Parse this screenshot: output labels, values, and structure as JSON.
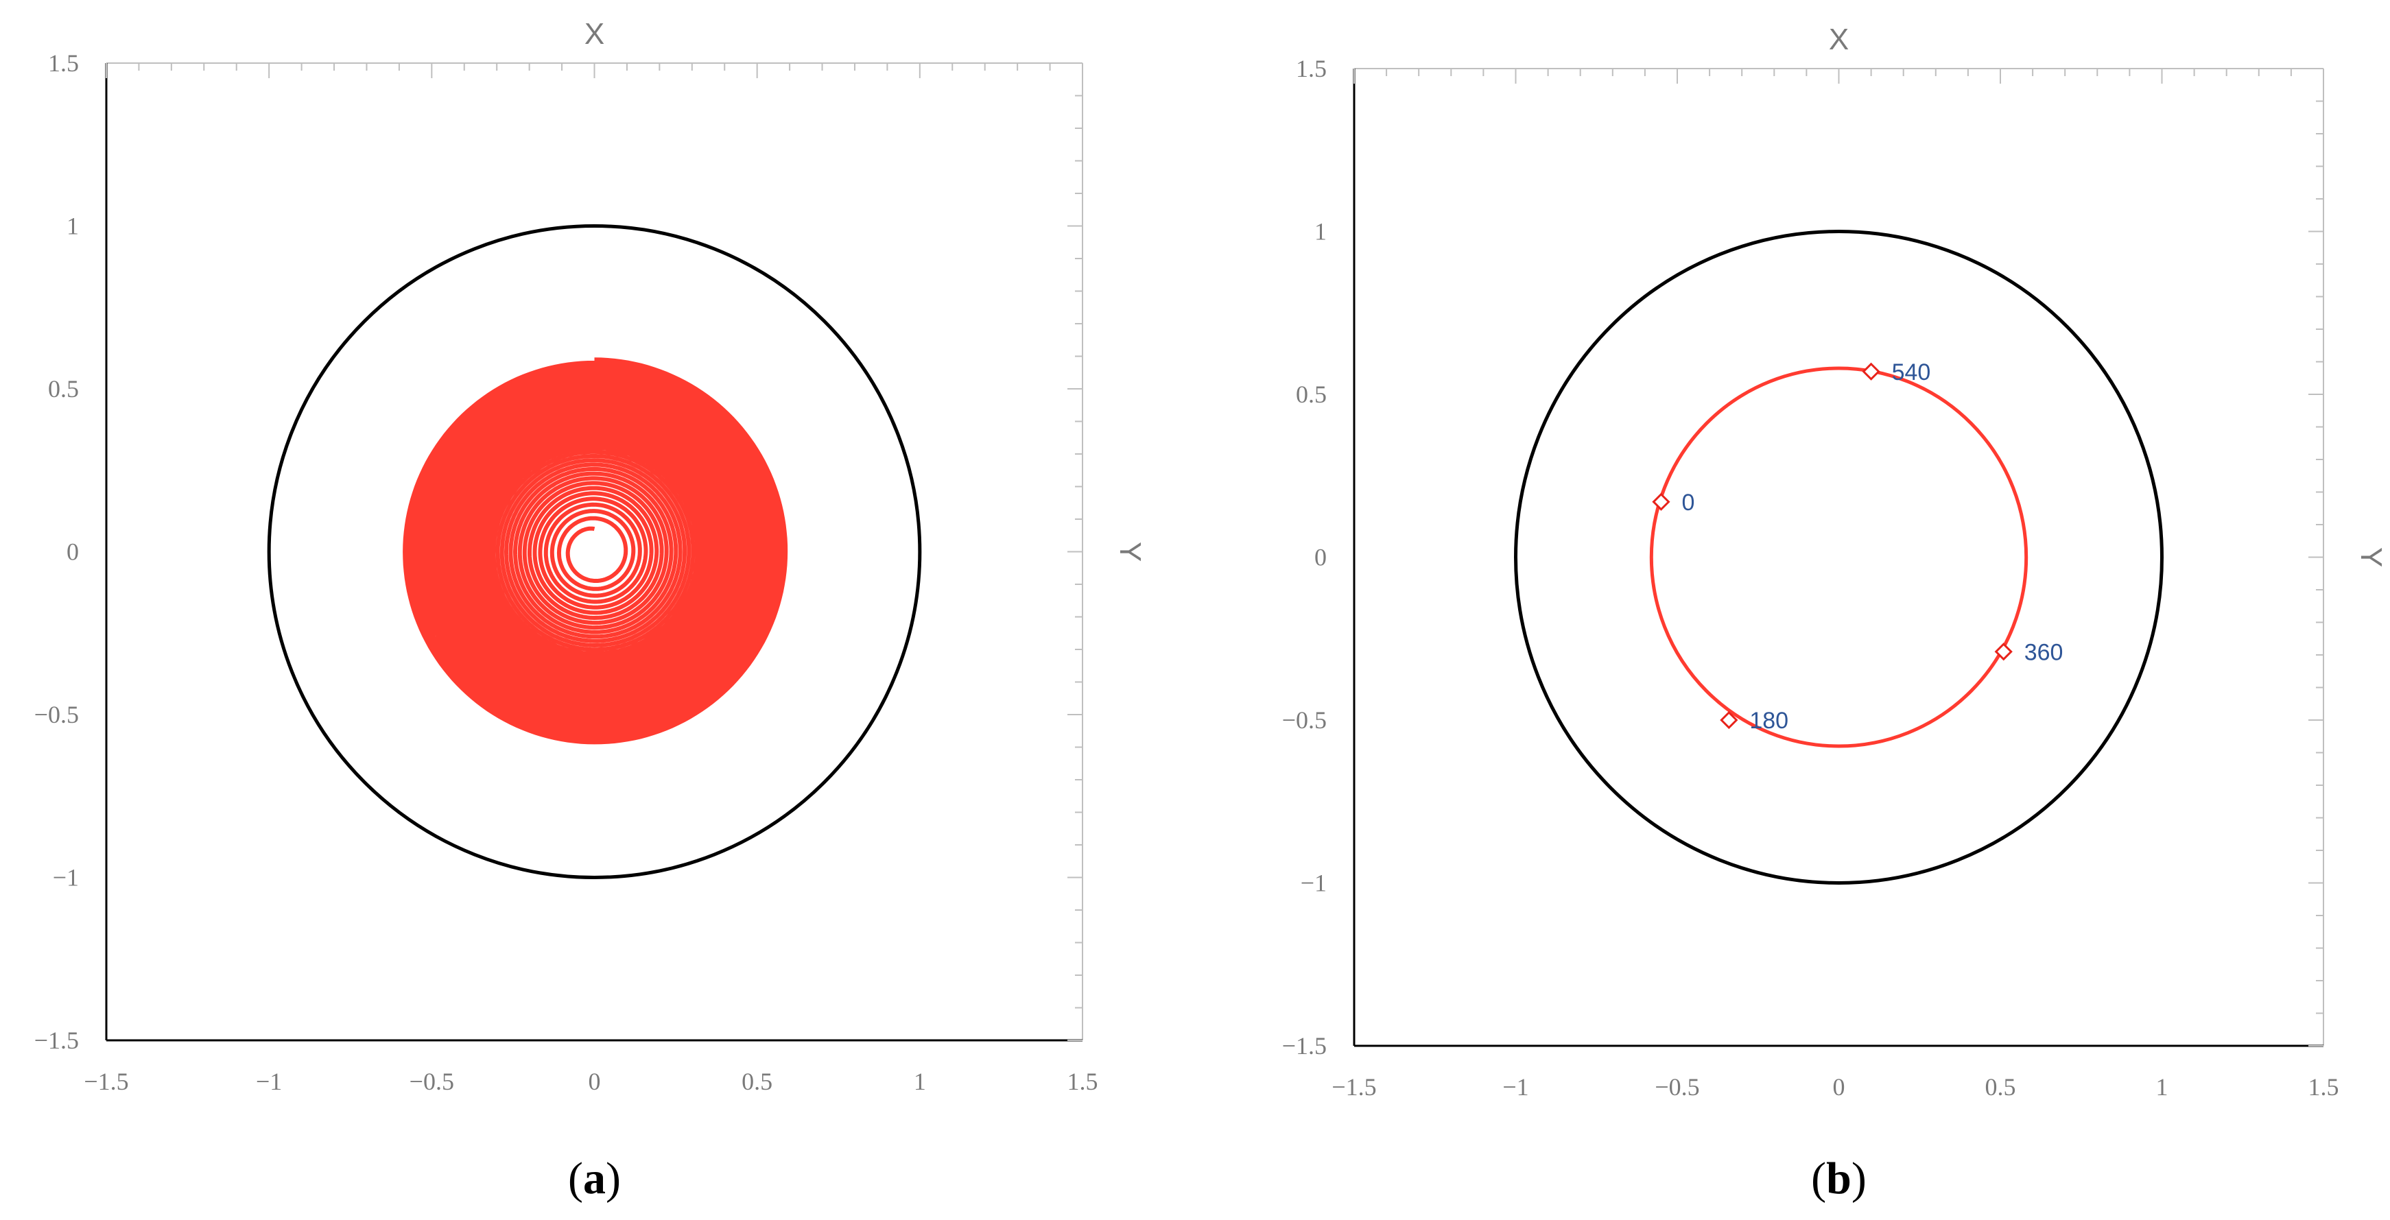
{
  "colors": {
    "boundary": "#000000",
    "trajectory": "#ff3b30",
    "marker": "#e8221a",
    "point_label": "#2e5597",
    "axis_text": "#7a7a7a",
    "frame": "#bfbfbf"
  },
  "chart_data": [
    {
      "type": "line",
      "panel_label": "a",
      "xlabel": "X",
      "ylabel": "Y",
      "xlim": [
        -1.5,
        1.5
      ],
      "ylim": [
        -1.5,
        1.5
      ],
      "ticks": [
        -1.5,
        -1,
        -0.5,
        0,
        0.5,
        1,
        1.5
      ],
      "tick_labels": [
        "−1.5",
        "−1",
        "−0.5",
        "0",
        "0.5",
        "1",
        "1.5"
      ],
      "grid": false,
      "legend": "none",
      "series": [
        {
          "kind": "circle",
          "center": [
            0,
            0
          ],
          "radius": 1.0
        },
        {
          "kind": "spiral",
          "center": [
            0,
            0
          ],
          "inner_radius": 0.07,
          "outer_radius": 0.59,
          "revolutions": 40
        }
      ]
    },
    {
      "type": "line",
      "panel_label": "b",
      "xlabel": "X",
      "ylabel": "Y",
      "xlim": [
        -1.5,
        1.5
      ],
      "ylim": [
        -1.5,
        1.5
      ],
      "ticks": [
        -1.5,
        -1,
        -0.5,
        0,
        0.5,
        1,
        1.5
      ],
      "tick_labels": [
        "−1.5",
        "−1",
        "−0.5",
        "0",
        "0.5",
        "1",
        "1.5"
      ],
      "grid": false,
      "legend": "none",
      "series": [
        {
          "kind": "circle",
          "center": [
            0,
            0
          ],
          "radius": 1.0
        },
        {
          "kind": "circle",
          "center": [
            0,
            0
          ],
          "radius": 0.58
        }
      ],
      "points": [
        {
          "label": "0",
          "x": -0.55,
          "y": 0.17
        },
        {
          "label": "180",
          "x": -0.34,
          "y": -0.5
        },
        {
          "label": "360",
          "x": 0.51,
          "y": -0.29
        },
        {
          "label": "540",
          "x": 0.1,
          "y": 0.57
        }
      ]
    }
  ]
}
